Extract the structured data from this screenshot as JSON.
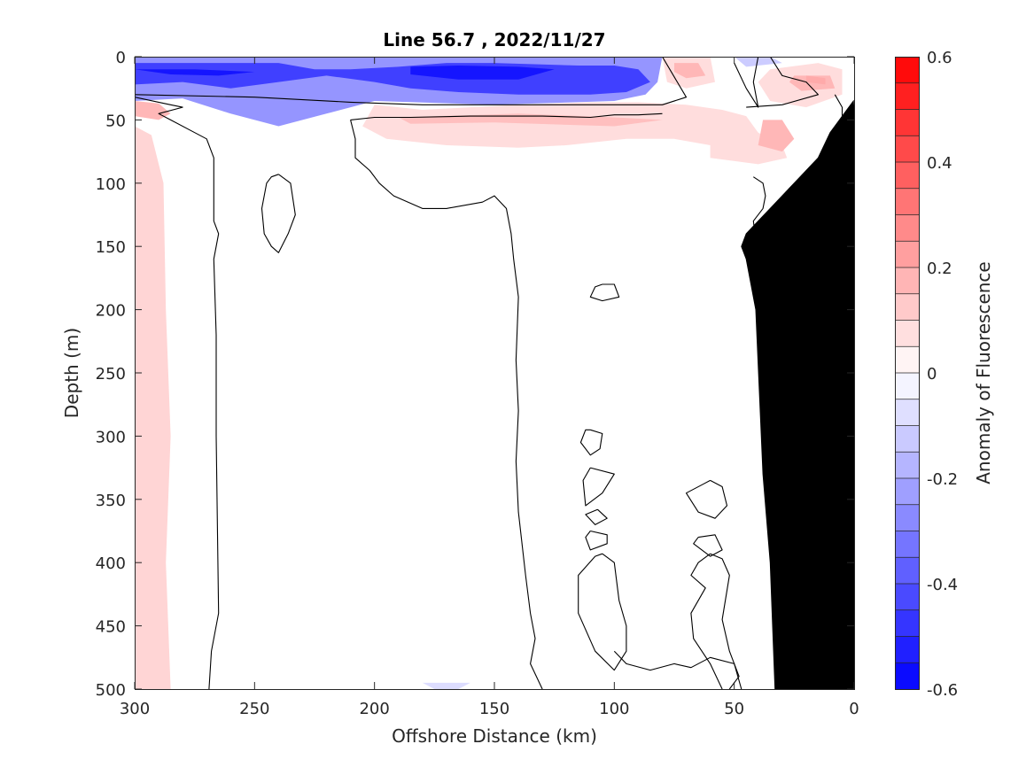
{
  "chart_data": {
    "type": "heatmap",
    "title": "Line 56.7 , 2022/11/27",
    "xlabel": "Offshore Distance (km)",
    "ylabel": "Depth (m)",
    "colorbar_label": "Anomaly of Fluorescence",
    "xlim": [
      300,
      0
    ],
    "ylim": [
      500,
      0
    ],
    "x_reversed": true,
    "y_reversed": true,
    "xticks": [
      300,
      250,
      200,
      150,
      100,
      50,
      0
    ],
    "yticks": [
      0,
      50,
      100,
      150,
      200,
      250,
      300,
      350,
      400,
      450,
      500
    ],
    "clim": [
      -0.6,
      0.6
    ],
    "colorbar_ticks": [
      "0.6",
      "0.4",
      "0.2",
      "0",
      "-0.2",
      "-0.4",
      "-0.6"
    ],
    "colorbar_levels": 24,
    "colormap": {
      "negative": "#0000ff",
      "zero": "#ffffff",
      "positive": "#ff0000"
    },
    "bathymetry_color": "#000000",
    "contour_color": "#000000",
    "grid": false,
    "colorbar_location": "right",
    "bathymetry": [
      {
        "x": 0.3,
        "y": 35
      },
      {
        "x": 0,
        "y": 45
      },
      {
        "x": 0,
        "y": 500
      },
      {
        "x": 33,
        "y": 500
      },
      {
        "x": 35,
        "y": 400
      },
      {
        "x": 38,
        "y": 330
      },
      {
        "x": 41,
        "y": 200
      },
      {
        "x": 45,
        "y": 160
      },
      {
        "x": 47,
        "y": 150
      },
      {
        "x": 45,
        "y": 140
      },
      {
        "x": 40,
        "y": 130
      },
      {
        "x": 35,
        "y": 120
      },
      {
        "x": 30,
        "y": 110
      },
      {
        "x": 25,
        "y": 100
      },
      {
        "x": 20,
        "y": 90
      },
      {
        "x": 15,
        "y": 80
      },
      {
        "x": 10,
        "y": 60
      }
    ],
    "anomaly_regions": [
      {
        "value": -0.25,
        "points": [
          [
            300,
            0
          ],
          [
            80,
            0
          ],
          [
            82,
            20
          ],
          [
            87,
            30
          ],
          [
            100,
            35
          ],
          [
            150,
            38
          ],
          [
            200,
            35
          ],
          [
            220,
            45
          ],
          [
            240,
            55
          ],
          [
            260,
            45
          ],
          [
            280,
            33
          ],
          [
            300,
            35
          ]
        ]
      },
      {
        "value": -0.45,
        "points": [
          [
            300,
            5
          ],
          [
            240,
            5
          ],
          [
            225,
            10
          ],
          [
            210,
            10
          ],
          [
            190,
            8
          ],
          [
            170,
            5
          ],
          [
            150,
            5
          ],
          [
            115,
            7
          ],
          [
            100,
            7
          ],
          [
            90,
            10
          ],
          [
            85,
            20
          ],
          [
            95,
            28
          ],
          [
            110,
            30
          ],
          [
            140,
            30
          ],
          [
            165,
            28
          ],
          [
            185,
            25
          ],
          [
            200,
            20
          ],
          [
            220,
            15
          ],
          [
            240,
            20
          ],
          [
            260,
            25
          ],
          [
            280,
            20
          ],
          [
            300,
            22
          ]
        ]
      },
      {
        "value": -0.55,
        "points": [
          [
            300,
            10
          ],
          [
            285,
            14
          ],
          [
            265,
            15
          ],
          [
            250,
            12
          ],
          [
            275,
            10
          ]
        ]
      },
      {
        "value": -0.55,
        "points": [
          [
            185,
            8
          ],
          [
            165,
            7
          ],
          [
            140,
            8
          ],
          [
            125,
            10
          ],
          [
            140,
            18
          ],
          [
            165,
            18
          ],
          [
            185,
            14
          ]
        ]
      },
      {
        "value": -0.12,
        "points": [
          [
            50,
            0
          ],
          [
            35,
            0
          ],
          [
            30,
            5
          ],
          [
            45,
            8
          ]
        ]
      },
      {
        "value": -0.08,
        "points": [
          [
            180,
            495
          ],
          [
            160,
            495
          ],
          [
            165,
            500
          ],
          [
            175,
            500
          ]
        ]
      },
      {
        "value": 0.1,
        "points": [
          [
            300,
            55
          ],
          [
            293,
            62
          ],
          [
            288,
            100
          ],
          [
            287,
            200
          ],
          [
            285,
            300
          ],
          [
            287,
            400
          ],
          [
            285,
            500
          ],
          [
            300,
            500
          ]
        ]
      },
      {
        "value": 0.17,
        "points": [
          [
            300,
            35
          ],
          [
            290,
            37
          ],
          [
            285,
            45
          ],
          [
            290,
            50
          ],
          [
            300,
            47
          ]
        ]
      },
      {
        "value": 0.08,
        "points": [
          [
            200,
            38
          ],
          [
            180,
            42
          ],
          [
            160,
            40
          ],
          [
            140,
            38
          ],
          [
            110,
            36
          ],
          [
            90,
            36
          ],
          [
            70,
            38
          ],
          [
            55,
            42
          ],
          [
            45,
            47
          ],
          [
            40,
            60
          ],
          [
            30,
            70
          ],
          [
            28,
            80
          ],
          [
            40,
            85
          ],
          [
            60,
            80
          ],
          [
            60,
            70
          ],
          [
            75,
            65
          ],
          [
            95,
            65
          ],
          [
            120,
            70
          ],
          [
            140,
            72
          ],
          [
            170,
            70
          ],
          [
            195,
            65
          ],
          [
            205,
            55
          ]
        ]
      },
      {
        "value": 0.08,
        "points": [
          [
            80,
            0
          ],
          [
            60,
            0
          ],
          [
            58,
            20
          ],
          [
            70,
            25
          ],
          [
            78,
            20
          ]
        ]
      },
      {
        "value": 0.08,
        "points": [
          [
            35,
            10
          ],
          [
            15,
            5
          ],
          [
            5,
            10
          ],
          [
            5,
            30
          ],
          [
            20,
            40
          ],
          [
            35,
            35
          ],
          [
            40,
            20
          ]
        ]
      },
      {
        "value": 0.15,
        "points": [
          [
            190,
            48
          ],
          [
            140,
            45
          ],
          [
            100,
            48
          ],
          [
            80,
            50
          ],
          [
            100,
            55
          ],
          [
            150,
            52
          ],
          [
            185,
            53
          ]
        ]
      },
      {
        "value": 0.17,
        "points": [
          [
            75,
            5
          ],
          [
            65,
            5
          ],
          [
            62,
            15
          ],
          [
            70,
            17
          ],
          [
            75,
            12
          ]
        ]
      },
      {
        "value": 0.17,
        "points": [
          [
            25,
            15
          ],
          [
            10,
            15
          ],
          [
            8,
            25
          ],
          [
            22,
            27
          ],
          [
            27,
            20
          ]
        ]
      },
      {
        "value": 0.17,
        "points": [
          [
            38,
            50
          ],
          [
            30,
            50
          ],
          [
            25,
            65
          ],
          [
            30,
            75
          ],
          [
            40,
            70
          ]
        ]
      },
      {
        "value": 0.2,
        "points": [
          [
            20,
            15
          ],
          [
            12,
            17
          ],
          [
            12,
            22
          ],
          [
            20,
            20
          ]
        ]
      }
    ],
    "zero_contours": [
      [
        [
          300,
          32
        ],
        [
          285,
          38
        ],
        [
          280,
          40
        ],
        [
          290,
          45
        ],
        [
          285,
          50
        ],
        [
          275,
          60
        ],
        [
          270,
          65
        ],
        [
          267,
          80
        ],
        [
          267,
          130
        ],
        [
          265,
          140
        ],
        [
          267,
          160
        ],
        [
          266,
          220
        ],
        [
          266,
          300
        ],
        [
          265,
          440
        ],
        [
          268,
          470
        ],
        [
          269,
          500
        ]
      ],
      [
        [
          240,
          93
        ],
        [
          235,
          100
        ],
        [
          233,
          125
        ],
        [
          236,
          140
        ],
        [
          240,
          155
        ],
        [
          243,
          150
        ],
        [
          246,
          140
        ],
        [
          247,
          120
        ],
        [
          245,
          100
        ],
        [
          243,
          95
        ],
        [
          240,
          93
        ]
      ],
      [
        [
          300,
          30
        ],
        [
          250,
          32
        ],
        [
          210,
          36
        ],
        [
          180,
          38
        ],
        [
          150,
          38
        ],
        [
          120,
          38
        ],
        [
          100,
          38
        ],
        [
          80,
          38
        ],
        [
          70,
          32
        ],
        [
          80,
          0
        ]
      ],
      [
        [
          210,
          50
        ],
        [
          208,
          65
        ],
        [
          208,
          80
        ],
        [
          202,
          90
        ],
        [
          198,
          100
        ],
        [
          192,
          110
        ],
        [
          180,
          120
        ],
        [
          170,
          120
        ],
        [
          155,
          115
        ],
        [
          150,
          110
        ],
        [
          145,
          120
        ],
        [
          143,
          140
        ],
        [
          142,
          160
        ],
        [
          140,
          190
        ],
        [
          141,
          240
        ],
        [
          140,
          280
        ],
        [
          141,
          320
        ],
        [
          140,
          360
        ],
        [
          137,
          410
        ],
        [
          135,
          440
        ],
        [
          133,
          460
        ],
        [
          135,
          480
        ],
        [
          130,
          500
        ]
      ],
      [
        [
          210,
          50
        ],
        [
          200,
          48
        ],
        [
          185,
          48
        ],
        [
          160,
          47
        ],
        [
          130,
          47
        ],
        [
          110,
          48
        ],
        [
          100,
          46
        ],
        [
          90,
          46
        ],
        [
          80,
          45
        ]
      ],
      [
        [
          100,
          470
        ],
        [
          95,
          480
        ],
        [
          85,
          485
        ],
        [
          75,
          480
        ],
        [
          68,
          483
        ],
        [
          60,
          475
        ],
        [
          50,
          480
        ],
        [
          47,
          500
        ]
      ],
      [
        [
          105,
          180
        ],
        [
          100,
          180
        ],
        [
          98,
          190
        ],
        [
          105,
          193
        ],
        [
          110,
          190
        ],
        [
          108,
          182
        ],
        [
          105,
          180
        ]
      ],
      [
        [
          110,
          295
        ],
        [
          105,
          298
        ],
        [
          106,
          310
        ],
        [
          110,
          315
        ],
        [
          114,
          305
        ],
        [
          112,
          295
        ],
        [
          110,
          295
        ]
      ],
      [
        [
          110,
          325
        ],
        [
          100,
          330
        ],
        [
          105,
          345
        ],
        [
          112,
          355
        ],
        [
          113,
          335
        ],
        [
          110,
          325
        ]
      ],
      [
        [
          107,
          358
        ],
        [
          103,
          365
        ],
        [
          108,
          370
        ],
        [
          112,
          362
        ],
        [
          107,
          358
        ]
      ],
      [
        [
          110,
          375
        ],
        [
          103,
          378
        ],
        [
          103,
          385
        ],
        [
          110,
          390
        ],
        [
          112,
          380
        ],
        [
          110,
          375
        ]
      ],
      [
        [
          105,
          393
        ],
        [
          100,
          400
        ],
        [
          98,
          430
        ],
        [
          95,
          450
        ],
        [
          95,
          470
        ],
        [
          100,
          485
        ],
        [
          108,
          470
        ],
        [
          115,
          440
        ],
        [
          115,
          410
        ],
        [
          108,
          395
        ],
        [
          105,
          393
        ]
      ],
      [
        [
          60,
          335
        ],
        [
          55,
          340
        ],
        [
          53,
          355
        ],
        [
          58,
          365
        ],
        [
          65,
          360
        ],
        [
          70,
          345
        ],
        [
          63,
          338
        ],
        [
          60,
          335
        ]
      ],
      [
        [
          65,
          380
        ],
        [
          58,
          378
        ],
        [
          55,
          390
        ],
        [
          60,
          395
        ],
        [
          67,
          385
        ],
        [
          65,
          380
        ]
      ],
      [
        [
          60,
          393
        ],
        [
          55,
          397
        ],
        [
          52,
          410
        ],
        [
          55,
          445
        ],
        [
          52,
          470
        ],
        [
          48,
          490
        ],
        [
          52,
          500
        ]
      ],
      [
        [
          60,
          393
        ],
        [
          65,
          400
        ],
        [
          68,
          410
        ],
        [
          62,
          420
        ],
        [
          68,
          440
        ],
        [
          67,
          460
        ],
        [
          60,
          480
        ],
        [
          55,
          500
        ]
      ],
      [
        [
          40,
          0
        ],
        [
          42,
          20
        ],
        [
          40,
          40
        ],
        [
          45,
          25
        ],
        [
          50,
          5
        ]
      ],
      [
        [
          35,
          0
        ],
        [
          30,
          15
        ],
        [
          20,
          20
        ],
        [
          15,
          30
        ],
        [
          30,
          38
        ],
        [
          45,
          40
        ]
      ],
      [
        [
          42,
          95
        ],
        [
          38,
          100
        ],
        [
          37,
          110
        ],
        [
          38,
          120
        ],
        [
          42,
          130
        ],
        [
          40,
          160
        ],
        [
          42,
          175
        ],
        [
          38,
          190
        ],
        [
          40,
          200
        ],
        [
          20,
          200
        ],
        [
          10,
          195
        ]
      ],
      [
        [
          30,
          110
        ],
        [
          20,
          112
        ],
        [
          12,
          115
        ]
      ],
      [
        [
          8,
          30
        ],
        [
          5,
          40
        ],
        [
          5,
          55
        ],
        [
          8,
          70
        ]
      ]
    ]
  }
}
